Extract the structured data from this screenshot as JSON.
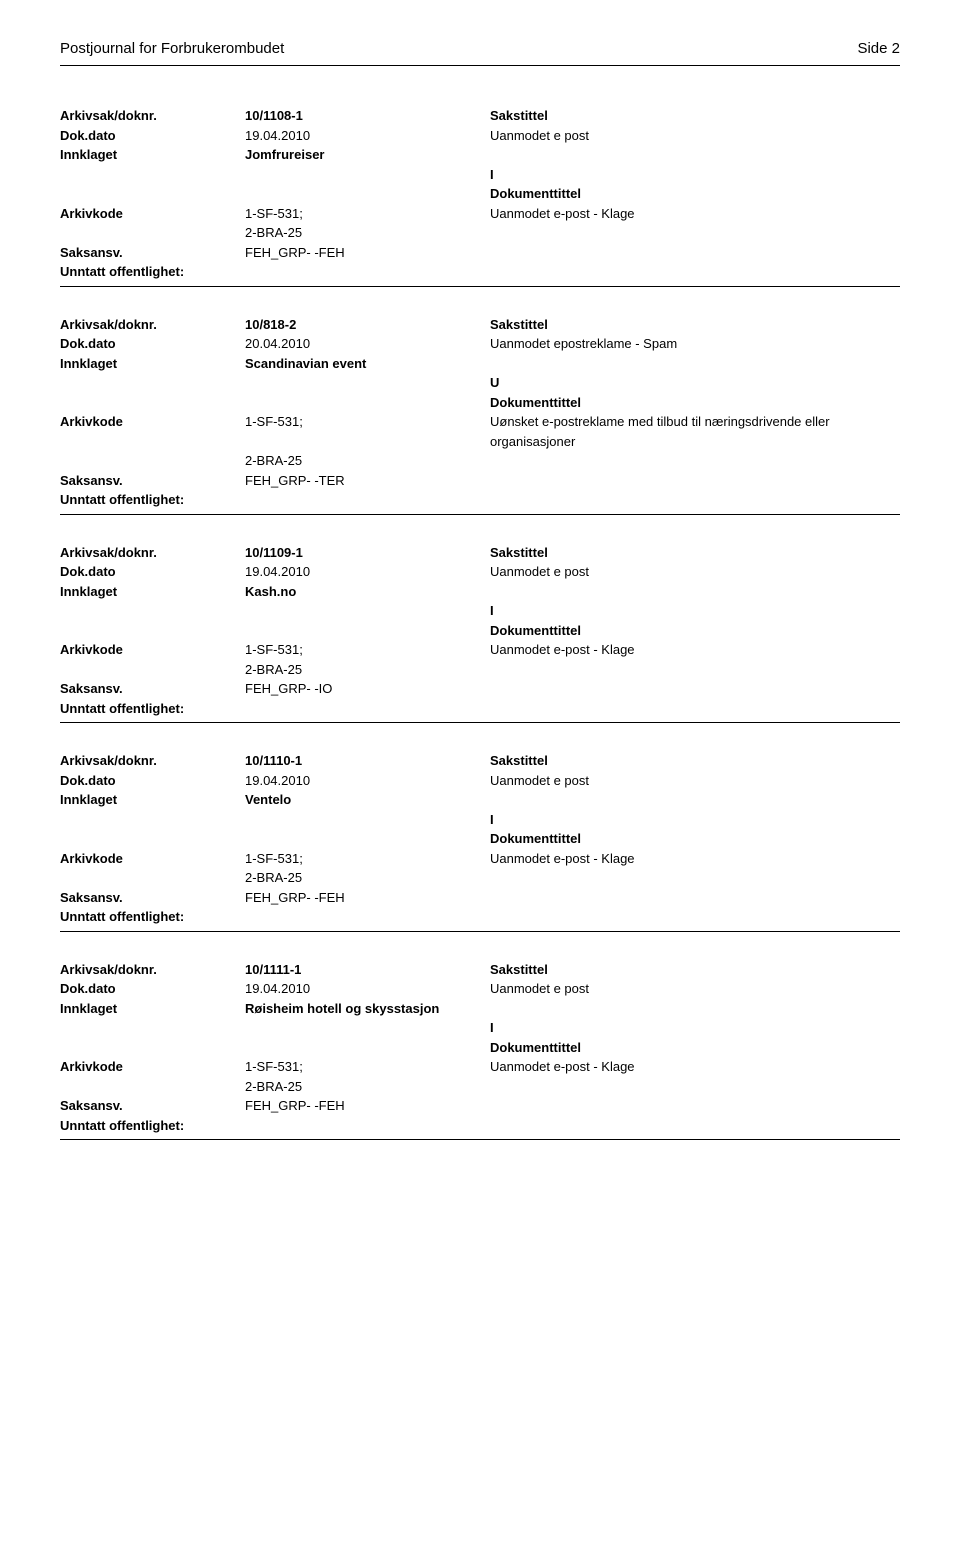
{
  "header": {
    "title": "Postjournal for Forbrukerombudet",
    "page_label": "Side 2"
  },
  "labels": {
    "arkivsak": "Arkivsak/doknr.",
    "dokdato": "Dok.dato",
    "innklaget": "Innklaget",
    "arkivkode": "Arkivkode",
    "saksansv": "Saksansv.",
    "unntatt": "Unntatt offentlighet:",
    "sakstittel": "Sakstittel",
    "dokumenttittel": "Dokumenttittel"
  },
  "entries": [
    {
      "arkivsak": "10/1108-1",
      "dokdato": "19.04.2010",
      "sakstittel_value": "Uanmodet e post",
      "innklaget": "Jomfrureiser",
      "direction": "I",
      "arkivkode_line1": "1-SF-531;",
      "arkivkode_line2": "2-BRA-25",
      "dokumenttittel_value": "Uanmodet e-post - Klage",
      "saksansv": "FEH_GRP- -FEH",
      "unntatt": ""
    },
    {
      "arkivsak": "10/818-2",
      "dokdato": "20.04.2010",
      "sakstittel_value": "Uanmodet epostreklame - Spam",
      "innklaget": "Scandinavian event",
      "direction": "U",
      "arkivkode_line1": "1-SF-531;",
      "arkivkode_line2": "2-BRA-25",
      "dokumenttittel_value": "Uønsket e-postreklame med tilbud til næringsdrivende eller organisasjoner",
      "saksansv": "FEH_GRP- -TER",
      "unntatt": ""
    },
    {
      "arkivsak": "10/1109-1",
      "dokdato": "19.04.2010",
      "sakstittel_value": "Uanmodet e post",
      "innklaget": "Kash.no",
      "direction": "I",
      "arkivkode_line1": "1-SF-531;",
      "arkivkode_line2": "2-BRA-25",
      "dokumenttittel_value": "Uanmodet e-post - Klage",
      "saksansv": "FEH_GRP- -IO",
      "unntatt": ""
    },
    {
      "arkivsak": "10/1110-1",
      "dokdato": "19.04.2010",
      "sakstittel_value": "Uanmodet e post",
      "innklaget": "Ventelo",
      "direction": "I",
      "arkivkode_line1": "1-SF-531;",
      "arkivkode_line2": "2-BRA-25",
      "dokumenttittel_value": "Uanmodet e-post - Klage",
      "saksansv": "FEH_GRP- -FEH",
      "unntatt": ""
    },
    {
      "arkivsak": "10/1111-1",
      "dokdato": "19.04.2010",
      "sakstittel_value": "Uanmodet e post",
      "innklaget": "Røisheim hotell og skysstasjon",
      "direction": "I",
      "arkivkode_line1": "1-SF-531;",
      "arkivkode_line2": "2-BRA-25",
      "dokumenttittel_value": "Uanmodet e-post - Klage",
      "saksansv": "FEH_GRP- -FEH",
      "unntatt": ""
    }
  ]
}
